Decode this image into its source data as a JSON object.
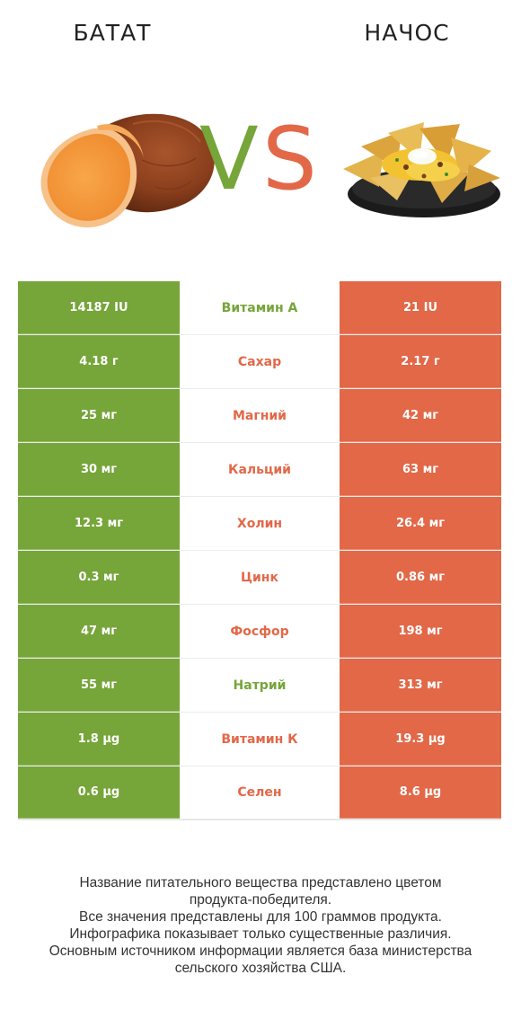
{
  "header": {
    "left_title": "БАТАТ",
    "right_title": "НАЧОС",
    "vs_v": "V",
    "vs_s": "S"
  },
  "colors": {
    "left_winner": "#76a53a",
    "right_winner": "#e26848"
  },
  "icons": {
    "left": "sweet-potato-icon",
    "right": "nachos-icon"
  },
  "table": {
    "rows": [
      {
        "left": "14187 IU",
        "name": "Витамин А",
        "right": "21 IU",
        "winner": "left"
      },
      {
        "left": "4.18 г",
        "name": "Сахар",
        "right": "2.17 г",
        "winner": "right"
      },
      {
        "left": "25 мг",
        "name": "Магний",
        "right": "42 мг",
        "winner": "right"
      },
      {
        "left": "30 мг",
        "name": "Кальций",
        "right": "63 мг",
        "winner": "right"
      },
      {
        "left": "12.3 мг",
        "name": "Холин",
        "right": "26.4 мг",
        "winner": "right"
      },
      {
        "left": "0.3 мг",
        "name": "Цинк",
        "right": "0.86 мг",
        "winner": "right"
      },
      {
        "left": "47 мг",
        "name": "Фосфор",
        "right": "198 мг",
        "winner": "right"
      },
      {
        "left": "55 мг",
        "name": "Натрий",
        "right": "313 мг",
        "winner": "left"
      },
      {
        "left": "1.8 µg",
        "name": "Витамин К",
        "right": "19.3 µg",
        "winner": "right"
      },
      {
        "left": "0.6 µg",
        "name": "Селен",
        "right": "8.6 µg",
        "winner": "right"
      }
    ]
  },
  "footer": {
    "line1": "Название питательного вещества представлено цветом",
    "line2": "продукта-победителя.",
    "line3": "Все значения представлены для 100 граммов продукта.",
    "line4": "Инфографика показывает только существенные различия.",
    "line5": "Основным источником информации является база министерства",
    "line6": "сельского хозяйства США."
  }
}
